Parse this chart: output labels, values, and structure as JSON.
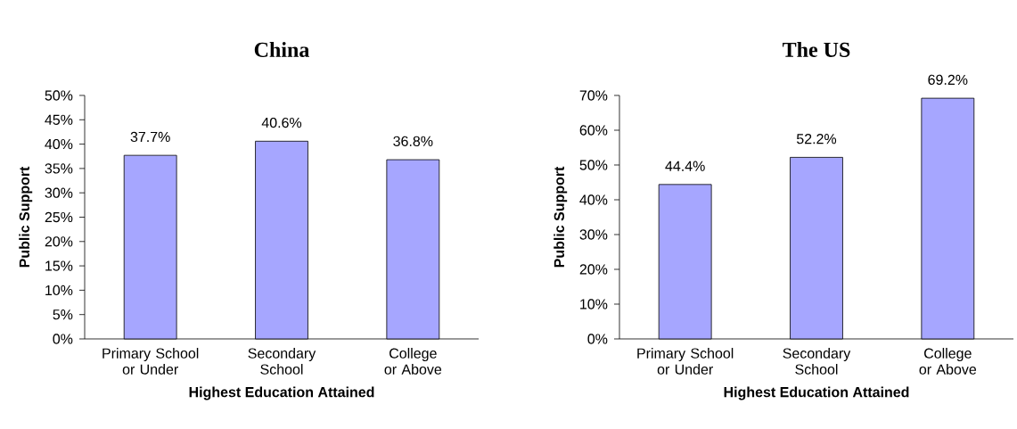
{
  "chart_data": [
    {
      "type": "bar",
      "title": "China",
      "xlabel": "Highest Education Attained",
      "ylabel": "Public Support",
      "categories": [
        "Primary School or Under",
        "Secondary School",
        "College or Above"
      ],
      "values": [
        37.7,
        40.6,
        36.8
      ],
      "color": "#a6a6ff",
      "value_labels": [
        "37.7%",
        "40.6%",
        "36.8%"
      ],
      "ylim": [
        0,
        50
      ],
      "yticks": [
        {
          "value": 0,
          "label": "0%"
        },
        {
          "value": 5,
          "label": "5%"
        },
        {
          "value": 10,
          "label": "10%"
        },
        {
          "value": 15,
          "label": "15%"
        },
        {
          "value": 20,
          "label": "20%"
        },
        {
          "value": 25,
          "label": "25%"
        },
        {
          "value": 30,
          "label": "30%"
        },
        {
          "value": 35,
          "label": "35%"
        },
        {
          "value": 40,
          "label": "40%"
        },
        {
          "value": 45,
          "label": "45%"
        },
        {
          "value": 50,
          "label": "50%"
        }
      ]
    },
    {
      "type": "bar",
      "title": "The US",
      "xlabel": "Highest Education Attained",
      "ylabel": "Public Support",
      "categories": [
        "Primary School or Under",
        "Secondary School",
        "College or Above"
      ],
      "values": [
        44.4,
        52.2,
        69.2
      ],
      "color": "#a6a6ff",
      "value_labels": [
        "44.4%",
        "52.2%",
        "69.2%"
      ],
      "ylim": [
        0,
        70
      ],
      "yticks": [
        {
          "value": 0,
          "label": "0%"
        },
        {
          "value": 10,
          "label": "10%"
        },
        {
          "value": 20,
          "label": "20%"
        },
        {
          "value": 30,
          "label": "30%"
        },
        {
          "value": 40,
          "label": "40%"
        },
        {
          "value": 50,
          "label": "50%"
        },
        {
          "value": 60,
          "label": "60%"
        },
        {
          "value": 70,
          "label": "70%"
        }
      ]
    }
  ]
}
